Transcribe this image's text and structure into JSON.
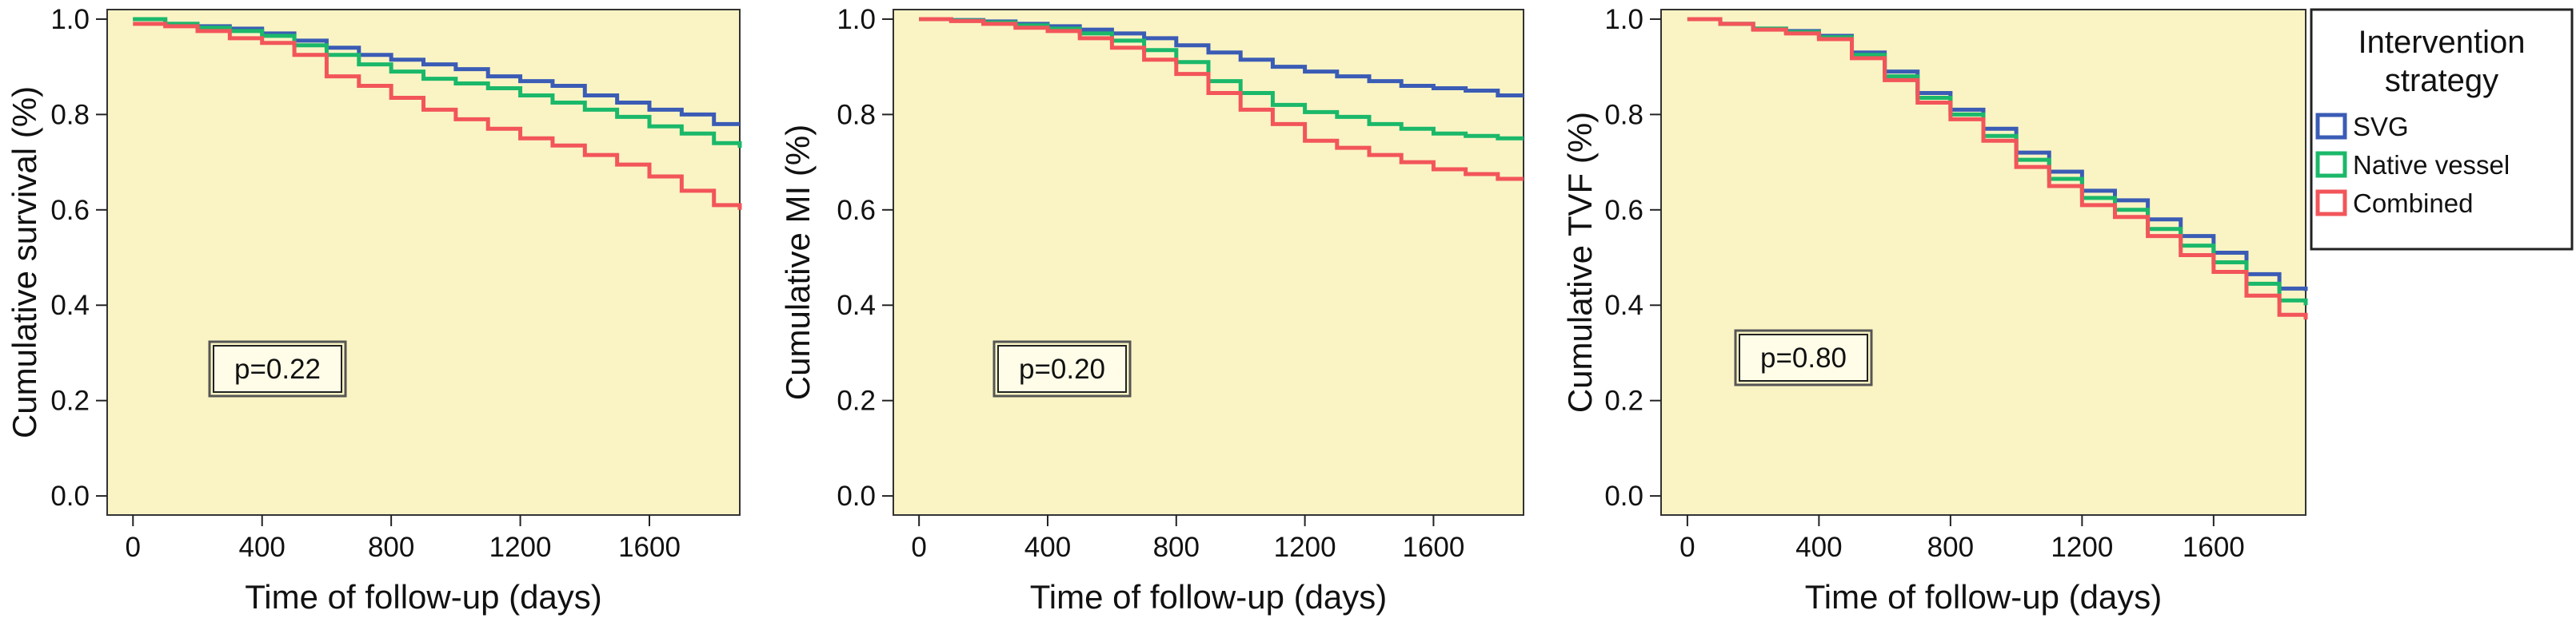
{
  "legend": {
    "title_line1": "Intervention",
    "title_line2": "strategy",
    "entries": [
      {
        "name": "SVG",
        "color": "#3b5cb5"
      },
      {
        "name": "Native vessel",
        "color": "#1bb86a"
      },
      {
        "name": "Combined",
        "color": "#f2555a"
      }
    ]
  },
  "panel_background": "#faf4c4",
  "chart_data": [
    {
      "type": "line",
      "step": true,
      "ylabel": "Cumulative survival (%)",
      "xlabel": "Time of follow-up (days)",
      "xlim": [
        -80,
        1880
      ],
      "ylim": [
        -0.04,
        1.02
      ],
      "xticks": [
        0,
        400,
        800,
        1200,
        1600
      ],
      "yticks": [
        0.0,
        0.2,
        0.4,
        0.6,
        0.8,
        1.0
      ],
      "ytick_labels": [
        "0.0",
        "0.2",
        "0.4",
        "0.6",
        "0.8",
        "1.0"
      ],
      "pvalue": "p=0.22",
      "series": [
        {
          "name": "SVG",
          "color": "#3b5cb5",
          "x": [
            0,
            100,
            200,
            300,
            400,
            500,
            600,
            700,
            800,
            900,
            1000,
            1100,
            1200,
            1300,
            1400,
            1500,
            1600,
            1700,
            1800,
            1880
          ],
          "y": [
            1.0,
            0.99,
            0.985,
            0.98,
            0.97,
            0.955,
            0.94,
            0.925,
            0.915,
            0.905,
            0.895,
            0.88,
            0.87,
            0.86,
            0.84,
            0.825,
            0.81,
            0.8,
            0.78,
            0.78
          ]
        },
        {
          "name": "Native vessel",
          "color": "#1bb86a",
          "x": [
            0,
            100,
            200,
            300,
            400,
            500,
            600,
            700,
            800,
            900,
            1000,
            1100,
            1200,
            1300,
            1400,
            1500,
            1600,
            1700,
            1800,
            1880
          ],
          "y": [
            1.0,
            0.99,
            0.982,
            0.975,
            0.965,
            0.945,
            0.925,
            0.905,
            0.89,
            0.875,
            0.865,
            0.855,
            0.84,
            0.825,
            0.81,
            0.795,
            0.775,
            0.76,
            0.74,
            0.73
          ]
        },
        {
          "name": "Combined",
          "color": "#f2555a",
          "x": [
            0,
            100,
            200,
            300,
            400,
            500,
            600,
            700,
            800,
            900,
            1000,
            1100,
            1200,
            1300,
            1400,
            1500,
            1600,
            1700,
            1800,
            1880
          ],
          "y": [
            0.99,
            0.985,
            0.975,
            0.96,
            0.95,
            0.925,
            0.88,
            0.86,
            0.835,
            0.81,
            0.79,
            0.77,
            0.75,
            0.735,
            0.715,
            0.695,
            0.67,
            0.64,
            0.61,
            0.6
          ]
        }
      ]
    },
    {
      "type": "line",
      "step": true,
      "ylabel": "Cumulative MI (%)",
      "xlabel": "Time of follow-up (days)",
      "xlim": [
        -80,
        1880
      ],
      "ylim": [
        -0.04,
        1.02
      ],
      "xticks": [
        0,
        400,
        800,
        1200,
        1600
      ],
      "yticks": [
        0.0,
        0.2,
        0.4,
        0.6,
        0.8,
        1.0
      ],
      "ytick_labels": [
        "0.0",
        "0.2",
        "0.4",
        "0.6",
        "0.8",
        "1.0"
      ],
      "pvalue": "p=0.20",
      "series": [
        {
          "name": "SVG",
          "color": "#3b5cb5",
          "x": [
            0,
            100,
            200,
            300,
            400,
            500,
            600,
            700,
            800,
            900,
            1000,
            1100,
            1200,
            1300,
            1400,
            1500,
            1600,
            1700,
            1800,
            1880
          ],
          "y": [
            1.0,
            0.998,
            0.995,
            0.99,
            0.985,
            0.978,
            0.97,
            0.96,
            0.945,
            0.93,
            0.915,
            0.9,
            0.89,
            0.88,
            0.87,
            0.86,
            0.855,
            0.85,
            0.84,
            0.84
          ]
        },
        {
          "name": "Native vessel",
          "color": "#1bb86a",
          "x": [
            0,
            100,
            200,
            300,
            400,
            500,
            600,
            700,
            800,
            900,
            1000,
            1100,
            1200,
            1300,
            1400,
            1500,
            1600,
            1700,
            1800,
            1880
          ],
          "y": [
            1.0,
            0.997,
            0.993,
            0.987,
            0.98,
            0.97,
            0.955,
            0.935,
            0.91,
            0.87,
            0.845,
            0.82,
            0.805,
            0.795,
            0.78,
            0.77,
            0.76,
            0.755,
            0.75,
            0.75
          ]
        },
        {
          "name": "Combined",
          "color": "#f2555a",
          "x": [
            0,
            100,
            200,
            300,
            400,
            500,
            600,
            700,
            800,
            900,
            1000,
            1100,
            1200,
            1300,
            1400,
            1500,
            1600,
            1700,
            1800,
            1880
          ],
          "y": [
            1.0,
            0.996,
            0.99,
            0.982,
            0.975,
            0.96,
            0.94,
            0.915,
            0.885,
            0.845,
            0.81,
            0.78,
            0.745,
            0.73,
            0.715,
            0.7,
            0.685,
            0.675,
            0.665,
            0.665
          ]
        }
      ]
    },
    {
      "type": "line",
      "step": true,
      "ylabel": "Cumulative TVF (%)",
      "xlabel": "Time of follow-up (days)",
      "xlim": [
        -80,
        1880
      ],
      "ylim": [
        -0.04,
        1.02
      ],
      "xticks": [
        0,
        400,
        800,
        1200,
        1600
      ],
      "yticks": [
        0.0,
        0.2,
        0.4,
        0.6,
        0.8,
        1.0
      ],
      "ytick_labels": [
        "0.0",
        "0.2",
        "0.4",
        "0.6",
        "0.8",
        "1.0"
      ],
      "pvalue": "p=0.80",
      "series": [
        {
          "name": "SVG",
          "color": "#3b5cb5",
          "x": [
            0,
            100,
            200,
            300,
            400,
            500,
            600,
            700,
            800,
            900,
            1000,
            1100,
            1200,
            1300,
            1400,
            1500,
            1600,
            1700,
            1800,
            1880
          ],
          "y": [
            1.0,
            0.99,
            0.98,
            0.975,
            0.965,
            0.93,
            0.89,
            0.845,
            0.81,
            0.77,
            0.72,
            0.68,
            0.64,
            0.62,
            0.58,
            0.545,
            0.51,
            0.465,
            0.435,
            0.43
          ]
        },
        {
          "name": "Native vessel",
          "color": "#1bb86a",
          "x": [
            0,
            100,
            200,
            300,
            400,
            500,
            600,
            700,
            800,
            900,
            1000,
            1100,
            1200,
            1300,
            1400,
            1500,
            1600,
            1700,
            1800,
            1880
          ],
          "y": [
            1.0,
            0.99,
            0.98,
            0.973,
            0.962,
            0.925,
            0.88,
            0.835,
            0.8,
            0.755,
            0.705,
            0.665,
            0.625,
            0.6,
            0.56,
            0.525,
            0.49,
            0.445,
            0.41,
            0.4
          ]
        },
        {
          "name": "Combined",
          "color": "#f2555a",
          "x": [
            0,
            100,
            200,
            300,
            400,
            500,
            600,
            700,
            800,
            900,
            1000,
            1100,
            1200,
            1300,
            1400,
            1500,
            1600,
            1700,
            1800,
            1880
          ],
          "y": [
            1.0,
            0.99,
            0.978,
            0.97,
            0.958,
            0.918,
            0.872,
            0.825,
            0.79,
            0.745,
            0.69,
            0.65,
            0.61,
            0.585,
            0.545,
            0.505,
            0.47,
            0.42,
            0.38,
            0.37
          ]
        }
      ]
    }
  ]
}
